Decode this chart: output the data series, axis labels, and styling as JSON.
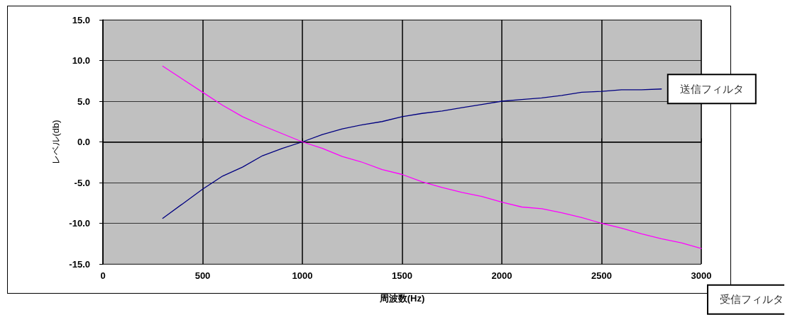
{
  "chart_data": {
    "type": "line",
    "xlabel": "周波数(Hz)",
    "ylabel": "レベル(db)",
    "xlim": [
      0,
      3000
    ],
    "xticks": [
      0,
      500,
      1000,
      1500,
      2000,
      2500,
      3000
    ],
    "ylim": [
      -15,
      15
    ],
    "yticks": [
      {
        "value": -15,
        "label": "-15.0"
      },
      {
        "value": -10,
        "label": "-10.0"
      },
      {
        "value": -5,
        "label": "-5.0"
      },
      {
        "value": 0,
        "label": "0.0"
      },
      {
        "value": 5,
        "label": "5.0"
      },
      {
        "value": 10,
        "label": "10.0"
      },
      {
        "value": 15,
        "label": "15.0"
      }
    ],
    "grid": true,
    "marker": "none",
    "line_style": "solid",
    "series": [
      {
        "name": "送信フィルタ",
        "color": "#000080",
        "x": [
          300,
          400,
          500,
          600,
          700,
          800,
          900,
          1000,
          1100,
          1200,
          1300,
          1400,
          1500,
          1600,
          1700,
          1800,
          1900,
          2000,
          2100,
          2200,
          2300,
          2400,
          2500,
          2600,
          2700,
          2800
        ],
        "values": [
          -9.4,
          -7.6,
          -5.8,
          -4.2,
          -3.1,
          -1.7,
          -0.8,
          0,
          0.9,
          1.6,
          2.1,
          2.5,
          3.1,
          3.5,
          3.8,
          4.2,
          4.6,
          5.0,
          5.2,
          5.4,
          5.7,
          6.1,
          6.2,
          6.4,
          6.4,
          6.5
        ]
      },
      {
        "name": "受信フィルタ",
        "color": "#ff00ff",
        "x": [
          300,
          400,
          500,
          600,
          700,
          800,
          900,
          1000,
          1100,
          1200,
          1300,
          1400,
          1500,
          1600,
          1700,
          1800,
          1900,
          2000,
          2100,
          2200,
          2300,
          2400,
          2500,
          2600,
          2700,
          2800,
          2900,
          3000
        ],
        "values": [
          9.3,
          7.7,
          6.1,
          4.5,
          3.1,
          2.0,
          1.0,
          0,
          -0.8,
          -1.8,
          -2.5,
          -3.4,
          -4.0,
          -4.9,
          -5.6,
          -6.2,
          -6.7,
          -7.4,
          -8.0,
          -8.2,
          -8.7,
          -9.3,
          -10.0,
          -10.6,
          -11.3,
          -11.9,
          -12.4,
          -13.1
        ]
      }
    ]
  }
}
